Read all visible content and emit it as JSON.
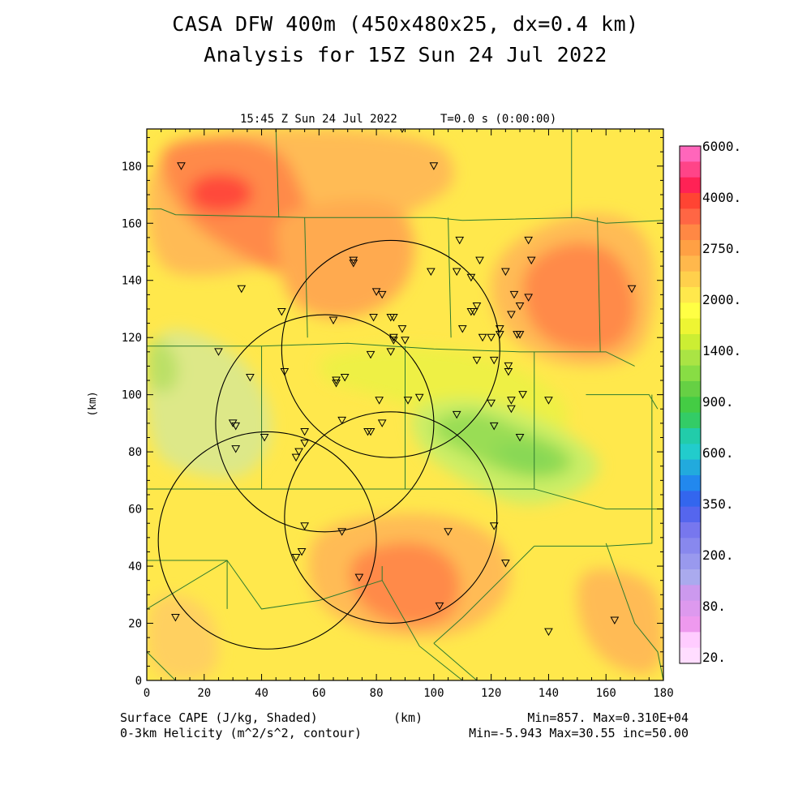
{
  "title_line1": "CASA DFW 400m (450x480x25, dx=0.4 km)",
  "title_line2": "Analysis for 15Z Sun 24 Jul 2022",
  "plot_time": "15:45 Z Sun 24 Jul 2022",
  "plot_elapsed": "T=0.0 s (0:00:00)",
  "x_axis_label": "(km)",
  "y_axis_label": "(km)",
  "x_ticks": [
    "0",
    "20",
    "40",
    "60",
    "80",
    "100",
    "120",
    "140",
    "160",
    "180"
  ],
  "y_ticks": [
    "0",
    "20",
    "40",
    "60",
    "80",
    "100",
    "120",
    "140",
    "160",
    "180"
  ],
  "colorbar_labels": [
    "6000.",
    "4000.",
    "2750.",
    "2000.",
    "1400.",
    "900.",
    "600.",
    "350.",
    "200.",
    "80.",
    "20."
  ],
  "colorbar_colors": [
    "#ff66bb",
    "#ff4488",
    "#ff2255",
    "#ff4433",
    "#ff6644",
    "#ff8844",
    "#ffa044",
    "#ffb84c",
    "#ffd04c",
    "#ffe84c",
    "#ffff44",
    "#eef533",
    "#ccee33",
    "#aae444",
    "#88dd44",
    "#66d044",
    "#44cc44",
    "#33cc66",
    "#22ccaa",
    "#22cccc",
    "#22aadd",
    "#2288ee",
    "#3366ee",
    "#5566ee",
    "#7777ee",
    "#8888ee",
    "#9999ee",
    "#aaaaee",
    "#cc99ee",
    "#dd99ee",
    "#ee99ee",
    "#ffccff",
    "#ffddff"
  ],
  "legend_left_1": "Surface CAPE (J/kg, Shaded)",
  "legend_left_2": "0-3km Helicity (m^2/s^2, contour)",
  "legend_center": "(km)",
  "legend_right_1": "Min=857. Max=0.310E+04",
  "legend_right_2": "Min=-5.943 Max=30.55 inc=50.00",
  "map_data": {
    "domain_km": {
      "x": [
        0,
        180
      ],
      "y": [
        0,
        193
      ]
    },
    "background_color": "#ffe84c",
    "cape_fields": [
      {
        "color": "#ffbb55",
        "ring": [
          [
            0,
            193
          ],
          [
            100,
            193
          ],
          [
            110,
            175
          ],
          [
            95,
            165
          ],
          [
            60,
            150
          ],
          [
            20,
            140
          ],
          [
            0,
            145
          ]
        ]
      },
      {
        "color": "#ff8a4a",
        "ring": [
          [
            5,
            190
          ],
          [
            45,
            190
          ],
          [
            55,
            170
          ],
          [
            60,
            150
          ],
          [
            50,
            140
          ],
          [
            30,
            150
          ],
          [
            15,
            160
          ],
          [
            5,
            175
          ]
        ]
      },
      {
        "color": "#ff4a3a",
        "ring": [
          [
            14,
            173
          ],
          [
            22,
            178
          ],
          [
            35,
            176
          ],
          [
            38,
            168
          ],
          [
            28,
            163
          ],
          [
            16,
            165
          ]
        ]
      },
      {
        "color": "#ffaa50",
        "ring": [
          [
            45,
            165
          ],
          [
            85,
            170
          ],
          [
            95,
            155
          ],
          [
            90,
            135
          ],
          [
            70,
            125
          ],
          [
            50,
            130
          ],
          [
            45,
            150
          ]
        ]
      },
      {
        "color": "#ffbb55",
        "ring": [
          [
            120,
            150
          ],
          [
            150,
            165
          ],
          [
            175,
            160
          ],
          [
            178,
            130
          ],
          [
            170,
            110
          ],
          [
            140,
            110
          ],
          [
            120,
            125
          ]
        ]
      },
      {
        "color": "#ff8a4a",
        "ring": [
          [
            130,
            145
          ],
          [
            148,
            155
          ],
          [
            165,
            150
          ],
          [
            172,
            130
          ],
          [
            165,
            115
          ],
          [
            145,
            115
          ],
          [
            132,
            125
          ]
        ]
      },
      {
        "color": "#eef044",
        "ring": [
          [
            60,
            115
          ],
          [
            100,
            118
          ],
          [
            130,
            110
          ],
          [
            150,
            95
          ],
          [
            140,
            80
          ],
          [
            110,
            90
          ],
          [
            80,
            100
          ],
          [
            60,
            105
          ]
        ]
      },
      {
        "color": "#dde888",
        "ring": [
          [
            0,
            125
          ],
          [
            25,
            120
          ],
          [
            40,
            105
          ],
          [
            45,
            85
          ],
          [
            35,
            70
          ],
          [
            15,
            72
          ],
          [
            0,
            80
          ]
        ]
      },
      {
        "color": "#bbe066",
        "ring": [
          [
            0,
            120
          ],
          [
            8,
            118
          ],
          [
            12,
            108
          ],
          [
            8,
            100
          ],
          [
            0,
            102
          ]
        ]
      },
      {
        "color": "#ccee66",
        "ring": [
          [
            90,
            95
          ],
          [
            110,
            100
          ],
          [
            130,
            95
          ],
          [
            150,
            85
          ],
          [
            160,
            75
          ],
          [
            150,
            65
          ],
          [
            130,
            60
          ],
          [
            110,
            70
          ],
          [
            95,
            80
          ]
        ]
      },
      {
        "color": "#99dd55",
        "ring": [
          [
            100,
            92
          ],
          [
            115,
            95
          ],
          [
            130,
            88
          ],
          [
            145,
            82
          ],
          [
            150,
            75
          ],
          [
            140,
            70
          ],
          [
            125,
            72
          ],
          [
            110,
            80
          ],
          [
            100,
            85
          ]
        ]
      },
      {
        "color": "#88d855",
        "ring": [
          [
            118,
            82
          ],
          [
            132,
            84
          ],
          [
            145,
            78
          ],
          [
            140,
            72
          ],
          [
            128,
            74
          ]
        ]
      },
      {
        "color": "#ffbb55",
        "ring": [
          [
            60,
            55
          ],
          [
            100,
            60
          ],
          [
            125,
            50
          ],
          [
            128,
            30
          ],
          [
            110,
            15
          ],
          [
            80,
            15
          ],
          [
            60,
            25
          ],
          [
            55,
            40
          ]
        ]
      },
      {
        "color": "#ff8a4a",
        "ring": [
          [
            72,
            45
          ],
          [
            95,
            50
          ],
          [
            110,
            40
          ],
          [
            108,
            22
          ],
          [
            92,
            18
          ],
          [
            76,
            24
          ],
          [
            70,
            35
          ]
        ]
      },
      {
        "color": "#ffbb55",
        "ring": [
          [
            150,
            40
          ],
          [
            170,
            38
          ],
          [
            180,
            30
          ],
          [
            180,
            0
          ],
          [
            160,
            5
          ],
          [
            150,
            20
          ]
        ]
      },
      {
        "color": "#ffd060",
        "ring": [
          [
            0,
            30
          ],
          [
            15,
            30
          ],
          [
            25,
            20
          ],
          [
            25,
            0
          ],
          [
            0,
            0
          ]
        ]
      }
    ],
    "county_lines": [
      [
        [
          0,
          165
        ],
        [
          5,
          165
        ],
        [
          10,
          163
        ],
        [
          55,
          162
        ],
        [
          100,
          162
        ],
        [
          110,
          161
        ],
        [
          150,
          162
        ],
        [
          160,
          160
        ],
        [
          180,
          161
        ]
      ],
      [
        [
          45,
          193
        ],
        [
          46,
          162
        ]
      ],
      [
        [
          55,
          162
        ],
        [
          56,
          120
        ]
      ],
      [
        [
          105,
          162
        ],
        [
          106,
          120
        ]
      ],
      [
        [
          148,
          193
        ],
        [
          148,
          162
        ]
      ],
      [
        [
          157,
          162
        ],
        [
          158,
          115
        ]
      ],
      [
        [
          0,
          117
        ],
        [
          40,
          117
        ],
        [
          70,
          118
        ],
        [
          100,
          116
        ],
        [
          130,
          115
        ],
        [
          160,
          115
        ],
        [
          170,
          110
        ]
      ],
      [
        [
          40,
          117
        ],
        [
          40,
          67
        ]
      ],
      [
        [
          90,
          117
        ],
        [
          90,
          67
        ]
      ],
      [
        [
          135,
          115
        ],
        [
          135,
          67
        ]
      ],
      [
        [
          0,
          67
        ],
        [
          40,
          67
        ],
        [
          90,
          67
        ],
        [
          135,
          67
        ],
        [
          160,
          60
        ],
        [
          180,
          60
        ]
      ],
      [
        [
          153,
          100
        ],
        [
          175,
          100
        ],
        [
          178,
          95
        ]
      ],
      [
        [
          176,
          100
        ],
        [
          176,
          48
        ],
        [
          160,
          47
        ],
        [
          135,
          47
        ]
      ],
      [
        [
          0,
          42
        ],
        [
          28,
          42
        ],
        [
          28,
          25
        ]
      ],
      [
        [
          0,
          25
        ],
        [
          28,
          42
        ],
        [
          40,
          25
        ],
        [
          60,
          28
        ],
        [
          82,
          35
        ],
        [
          95,
          12
        ],
        [
          110,
          0
        ]
      ],
      [
        [
          82,
          40
        ],
        [
          82,
          35
        ]
      ],
      [
        [
          100,
          13
        ],
        [
          115,
          0
        ]
      ],
      [
        [
          135,
          47
        ],
        [
          110,
          22
        ],
        [
          100,
          13
        ]
      ],
      [
        [
          160,
          48
        ],
        [
          170,
          20
        ],
        [
          178,
          10
        ],
        [
          180,
          0
        ]
      ],
      [
        [
          0,
          10
        ],
        [
          5,
          5
        ],
        [
          10,
          0
        ]
      ]
    ],
    "helicity_circles": [
      {
        "cx": 85,
        "cy": 116,
        "r": 38
      },
      {
        "cx": 62,
        "cy": 90,
        "r": 38
      },
      {
        "cx": 85,
        "cy": 57,
        "r": 37
      },
      {
        "cx": 42,
        "cy": 49,
        "r": 38
      }
    ],
    "stations": [
      [
        12,
        180
      ],
      [
        89,
        193
      ],
      [
        100,
        180
      ],
      [
        33,
        137
      ],
      [
        47,
        129
      ],
      [
        65,
        126
      ],
      [
        72,
        146
      ],
      [
        72,
        147
      ],
      [
        80,
        136
      ],
      [
        82,
        135
      ],
      [
        79,
        127
      ],
      [
        86,
        127
      ],
      [
        85,
        127
      ],
      [
        86,
        120
      ],
      [
        86,
        119
      ],
      [
        89,
        123
      ],
      [
        90,
        119
      ],
      [
        85,
        115
      ],
      [
        78,
        114
      ],
      [
        99,
        143
      ],
      [
        109,
        154
      ],
      [
        108,
        143
      ],
      [
        113,
        141
      ],
      [
        113,
        129
      ],
      [
        114,
        129
      ],
      [
        115,
        131
      ],
      [
        116,
        147
      ],
      [
        125,
        143
      ],
      [
        128,
        135
      ],
      [
        130,
        131
      ],
      [
        127,
        128
      ],
      [
        123,
        121
      ],
      [
        121,
        112
      ],
      [
        123,
        123
      ],
      [
        120,
        120
      ],
      [
        117,
        120
      ],
      [
        115,
        112
      ],
      [
        130,
        121
      ],
      [
        129,
        121
      ],
      [
        133,
        134
      ],
      [
        134,
        147
      ],
      [
        133,
        154
      ],
      [
        169,
        137
      ],
      [
        110,
        123
      ],
      [
        25,
        115
      ],
      [
        36,
        106
      ],
      [
        48,
        108
      ],
      [
        66,
        105
      ],
      [
        66,
        104
      ],
      [
        69,
        106
      ],
      [
        68,
        91
      ],
      [
        78,
        87
      ],
      [
        77,
        87
      ],
      [
        82,
        90
      ],
      [
        81,
        98
      ],
      [
        91,
        98
      ],
      [
        95,
        99
      ],
      [
        108,
        93
      ],
      [
        120,
        97
      ],
      [
        121,
        89
      ],
      [
        126,
        110
      ],
      [
        126,
        108
      ],
      [
        127,
        98
      ],
      [
        131,
        100
      ],
      [
        127,
        95
      ],
      [
        130,
        85
      ],
      [
        140,
        98
      ],
      [
        30,
        90
      ],
      [
        31,
        89
      ],
      [
        31,
        81
      ],
      [
        41,
        85
      ],
      [
        55,
        87
      ],
      [
        55,
        83
      ],
      [
        53,
        80
      ],
      [
        52,
        78
      ],
      [
        55,
        54
      ],
      [
        68,
        52
      ],
      [
        54,
        45
      ],
      [
        52,
        43
      ],
      [
        74,
        36
      ],
      [
        102,
        26
      ],
      [
        105,
        52
      ],
      [
        121,
        54
      ],
      [
        125,
        41
      ],
      [
        140,
        17
      ],
      [
        163,
        21
      ],
      [
        10,
        22
      ]
    ]
  }
}
